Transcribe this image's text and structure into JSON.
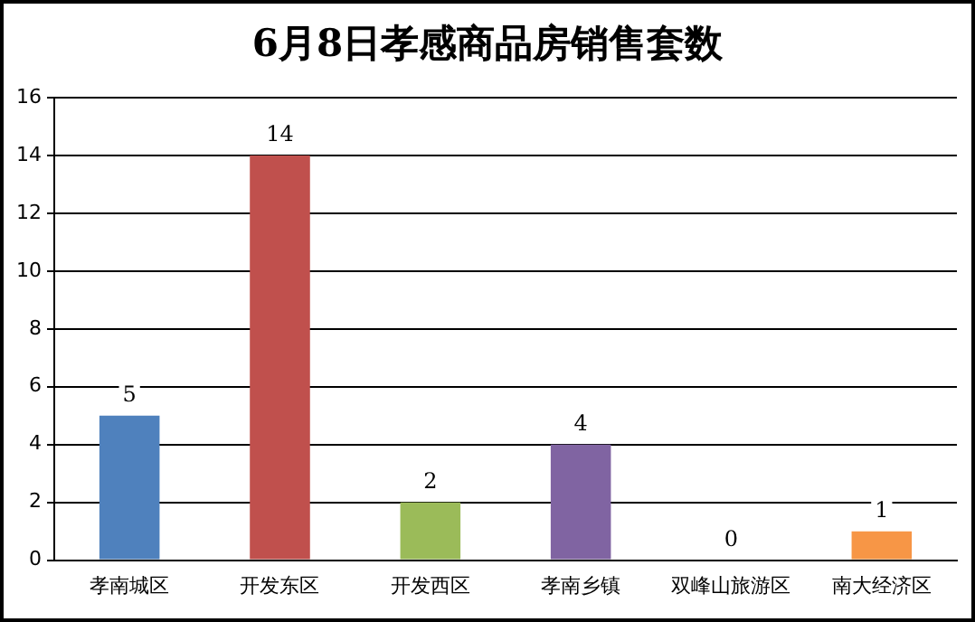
{
  "chart_data": {
    "type": "bar",
    "title": "6月8日孝感商品房销售套数",
    "categories": [
      "孝南城区",
      "开发东区",
      "开发西区",
      "孝南乡镇",
      "双峰山旅游区",
      "南大经济区"
    ],
    "values": [
      5,
      14,
      2,
      4,
      0,
      1
    ],
    "colors": [
      "#4f81bd",
      "#c0504d",
      "#9bbb59",
      "#8064a2",
      "#4bacc6",
      "#f79646"
    ],
    "ylim": [
      0,
      16
    ],
    "yticks": [
      0,
      2,
      4,
      6,
      8,
      10,
      12,
      14,
      16
    ],
    "grid": "y",
    "data_labels": true,
    "legend": false
  }
}
